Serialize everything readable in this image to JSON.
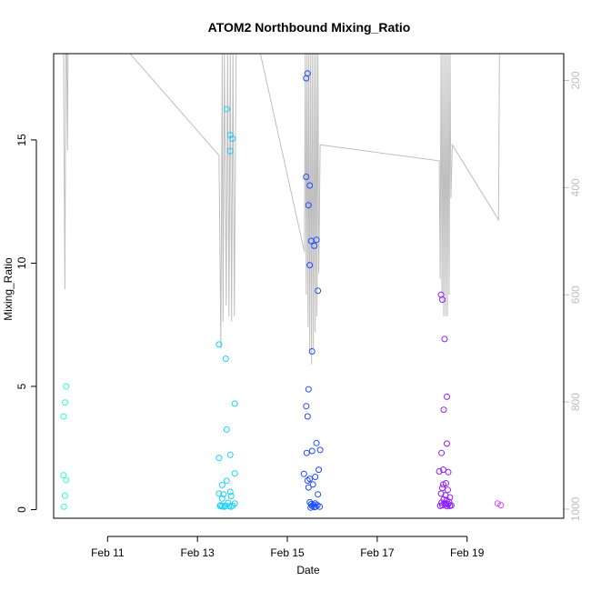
{
  "chart_data": {
    "type": "scatter",
    "title": "ATOM2 Northbound Mixing_Ratio",
    "xlabel": "Date",
    "ylabel": "Mixing_Ratio",
    "x_unit": "day of February",
    "xlim": [
      9.8,
      21.15
    ],
    "ylim": [
      -0.35,
      18.5
    ],
    "x_ticks": [
      {
        "value": 11,
        "label": "Feb 11"
      },
      {
        "value": 13,
        "label": "Feb 13"
      },
      {
        "value": 15,
        "label": "Feb 15"
      },
      {
        "value": 17,
        "label": "Feb 17"
      },
      {
        "value": 19,
        "label": "Feb 19"
      }
    ],
    "y_ticks": [
      0,
      5,
      10,
      15
    ],
    "y2_ticks": [
      200,
      400,
      600,
      800,
      1000
    ],
    "y2lim": [
      1017,
      150
    ],
    "grid": false,
    "legend": "none",
    "colors": {
      "pressure_line": "#bebebe",
      "axis": "#000000",
      "right_axis": "#bebebe"
    },
    "series": [
      {
        "color": "#33ffc7",
        "points": [
          [
            10.08,
            5.0
          ],
          [
            10.05,
            4.35
          ],
          [
            10.02,
            3.78
          ],
          [
            10.02,
            1.4
          ],
          [
            10.08,
            1.2
          ],
          [
            10.05,
            0.57
          ],
          [
            10.03,
            0.12
          ]
        ]
      },
      {
        "color": "#1ad1ff",
        "points": [
          [
            13.48,
            6.7
          ],
          [
            13.63,
            6.12
          ],
          [
            13.65,
            16.25
          ],
          [
            13.73,
            15.2
          ],
          [
            13.78,
            15.05
          ],
          [
            13.73,
            14.55
          ],
          [
            13.83,
            4.3
          ],
          [
            13.65,
            3.25
          ],
          [
            13.48,
            2.1
          ],
          [
            13.73,
            2.22
          ],
          [
            13.83,
            1.47
          ],
          [
            13.65,
            1.17
          ],
          [
            13.55,
            1.0
          ],
          [
            13.48,
            0.65
          ],
          [
            13.58,
            0.62
          ],
          [
            13.73,
            0.72
          ],
          [
            13.75,
            0.55
          ],
          [
            13.55,
            0.45
          ],
          [
            13.68,
            0.28
          ],
          [
            13.83,
            0.25
          ],
          [
            13.5,
            0.15
          ],
          [
            13.55,
            0.13
          ],
          [
            13.62,
            0.16
          ],
          [
            13.7,
            0.14
          ],
          [
            13.75,
            0.12
          ],
          [
            13.52,
            0.18
          ],
          [
            13.6,
            0.12
          ],
          [
            13.78,
            0.16
          ]
        ]
      },
      {
        "color": "#1f4bff",
        "points": [
          [
            15.45,
            17.7
          ],
          [
            15.42,
            17.5
          ],
          [
            15.42,
            13.5
          ],
          [
            15.5,
            13.15
          ],
          [
            15.47,
            12.35
          ],
          [
            15.53,
            10.9
          ],
          [
            15.65,
            10.95
          ],
          [
            15.6,
            10.7
          ],
          [
            15.5,
            9.92
          ],
          [
            15.68,
            8.88
          ],
          [
            15.55,
            6.42
          ],
          [
            15.47,
            4.88
          ],
          [
            15.42,
            4.2
          ],
          [
            15.45,
            3.78
          ],
          [
            15.65,
            2.7
          ],
          [
            15.73,
            2.42
          ],
          [
            15.55,
            2.38
          ],
          [
            15.43,
            2.3
          ],
          [
            15.7,
            1.62
          ],
          [
            15.37,
            1.45
          ],
          [
            15.62,
            1.33
          ],
          [
            15.5,
            1.25
          ],
          [
            15.45,
            1.18
          ],
          [
            15.57,
            1.02
          ],
          [
            15.47,
            0.9
          ],
          [
            15.68,
            0.62
          ],
          [
            15.5,
            0.3
          ],
          [
            15.53,
            0.22
          ],
          [
            15.58,
            0.2
          ],
          [
            15.62,
            0.25
          ],
          [
            15.67,
            0.18
          ],
          [
            15.72,
            0.12
          ],
          [
            15.55,
            0.15
          ],
          [
            15.6,
            0.1
          ],
          [
            15.52,
            0.08
          ],
          [
            15.63,
            0.12
          ]
        ]
      },
      {
        "color": "#8e1fff",
        "points": [
          [
            18.42,
            8.72
          ],
          [
            18.45,
            8.52
          ],
          [
            18.5,
            6.92
          ],
          [
            18.55,
            4.58
          ],
          [
            18.48,
            4.05
          ],
          [
            18.55,
            2.68
          ],
          [
            18.43,
            2.3
          ],
          [
            18.47,
            1.62
          ],
          [
            18.38,
            1.55
          ],
          [
            18.58,
            1.52
          ],
          [
            18.53,
            1.07
          ],
          [
            18.47,
            1.02
          ],
          [
            18.45,
            0.88
          ],
          [
            18.57,
            0.8
          ],
          [
            18.42,
            0.65
          ],
          [
            18.52,
            0.58
          ],
          [
            18.62,
            0.5
          ],
          [
            18.48,
            0.42
          ],
          [
            18.55,
            0.38
          ],
          [
            18.6,
            0.3
          ],
          [
            18.43,
            0.28
          ],
          [
            18.5,
            0.25
          ],
          [
            18.58,
            0.22
          ],
          [
            18.52,
            0.2
          ],
          [
            18.45,
            0.18
          ],
          [
            18.65,
            0.17
          ],
          [
            18.4,
            0.15
          ],
          [
            18.55,
            0.14
          ],
          [
            18.62,
            0.15
          ]
        ]
      },
      {
        "color": "#d24bff",
        "points": [
          [
            19.68,
            0.25
          ],
          [
            19.75,
            0.18
          ]
        ]
      }
    ],
    "pressure_line": [
      [
        10.02,
        150
      ],
      [
        10.03,
        320
      ],
      [
        10.05,
        590
      ],
      [
        10.07,
        150
      ],
      [
        10.09,
        150
      ],
      [
        10.11,
        330
      ],
      [
        10.12,
        150
      ],
      [
        10.5,
        150
      ],
      [
        11.5,
        150
      ],
      [
        13.48,
        340
      ],
      [
        13.52,
        700
      ],
      [
        13.55,
        150
      ],
      [
        13.57,
        650
      ],
      [
        13.6,
        150
      ],
      [
        13.64,
        620
      ],
      [
        13.67,
        150
      ],
      [
        13.7,
        640
      ],
      [
        13.73,
        150
      ],
      [
        13.76,
        650
      ],
      [
        13.79,
        150
      ],
      [
        13.82,
        640
      ],
      [
        13.86,
        150
      ],
      [
        14.4,
        150
      ],
      [
        15.38,
        520
      ],
      [
        15.4,
        150
      ],
      [
        15.42,
        600
      ],
      [
        15.44,
        150
      ],
      [
        15.46,
        660
      ],
      [
        15.48,
        150
      ],
      [
        15.5,
        710
      ],
      [
        15.52,
        150
      ],
      [
        15.54,
        730
      ],
      [
        15.56,
        150
      ],
      [
        15.58,
        700
      ],
      [
        15.6,
        150
      ],
      [
        15.62,
        670
      ],
      [
        15.64,
        150
      ],
      [
        15.66,
        640
      ],
      [
        15.68,
        150
      ],
      [
        15.7,
        560
      ],
      [
        15.73,
        320
      ],
      [
        18.38,
        350
      ],
      [
        18.4,
        570
      ],
      [
        18.42,
        150
      ],
      [
        18.44,
        610
      ],
      [
        18.46,
        150
      ],
      [
        18.48,
        640
      ],
      [
        18.5,
        150
      ],
      [
        18.52,
        640
      ],
      [
        18.54,
        150
      ],
      [
        18.56,
        640
      ],
      [
        18.58,
        150
      ],
      [
        18.6,
        600
      ],
      [
        18.62,
        150
      ],
      [
        18.64,
        420
      ],
      [
        18.67,
        320
      ],
      [
        19.7,
        460
      ],
      [
        19.72,
        150
      ]
    ]
  }
}
